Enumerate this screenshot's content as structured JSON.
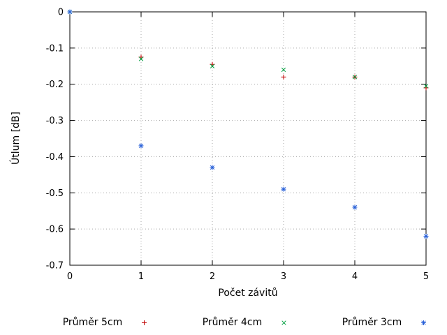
{
  "chart_data": {
    "type": "scatter",
    "title": "",
    "xlabel": "Počet závitů",
    "ylabel": "Útlum [dB]",
    "xlim": [
      0,
      5
    ],
    "ylim": [
      -0.7,
      0
    ],
    "x_ticks": [
      0,
      1,
      2,
      3,
      4,
      5
    ],
    "y_ticks": [
      0,
      -0.1,
      -0.2,
      -0.3,
      -0.4,
      -0.5,
      -0.6,
      -0.7
    ],
    "grid": true,
    "grid_style": "dotted",
    "legend_position": "bottom",
    "x": [
      0,
      1,
      2,
      3,
      4,
      5
    ],
    "series": [
      {
        "name": "Průměr 5cm",
        "marker": "plus",
        "color": "#c00000",
        "values": [
          0,
          -0.125,
          -0.145,
          -0.18,
          -0.18,
          -0.21
        ]
      },
      {
        "name": "Průměr 4cm",
        "marker": "cross",
        "color": "#00a040",
        "values": [
          0,
          -0.13,
          -0.15,
          -0.16,
          -0.18,
          -0.205
        ]
      },
      {
        "name": "Průměr 3cm",
        "marker": "asterisk",
        "color": "#2860d8",
        "values": [
          0,
          -0.37,
          -0.43,
          -0.49,
          -0.54,
          -0.62
        ]
      }
    ]
  }
}
